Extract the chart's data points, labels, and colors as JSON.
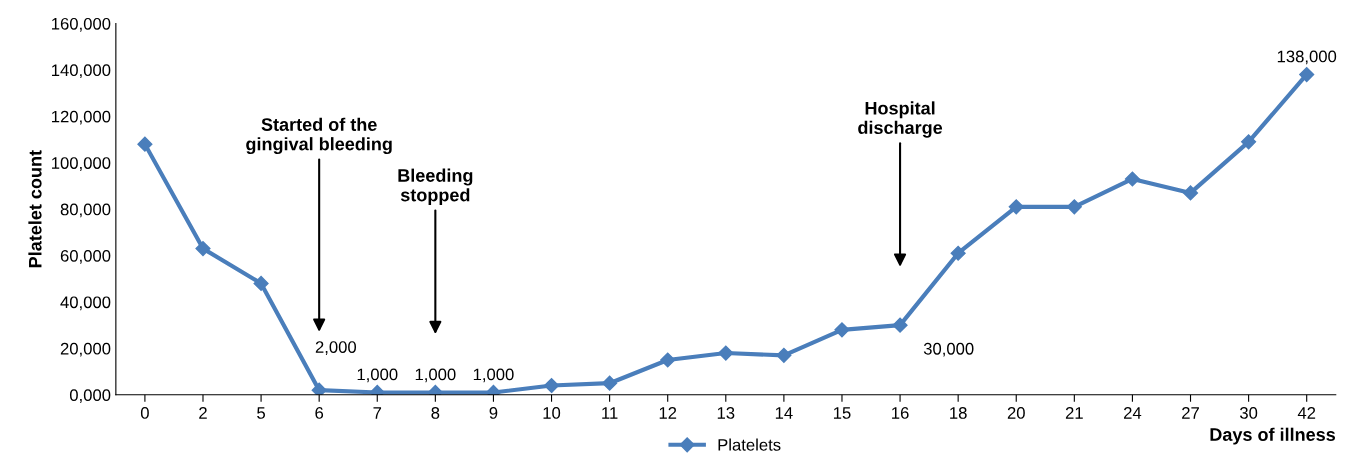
{
  "chart_data": {
    "type": "line",
    "xlabel": "Days of illness",
    "ylabel": "Platelet count",
    "categories": [
      "0",
      "2",
      "5",
      "6",
      "7",
      "8",
      "9",
      "10",
      "11",
      "12",
      "13",
      "14",
      "15",
      "16",
      "18",
      "20",
      "21",
      "24",
      "27",
      "30",
      "42"
    ],
    "series": [
      {
        "name": "Platelets",
        "color": "#4a7ebb",
        "values": [
          108000,
          63000,
          48000,
          2000,
          1000,
          1000,
          1000,
          4000,
          5000,
          15000,
          18000,
          17000,
          28000,
          30000,
          61000,
          81000,
          81000,
          93000,
          87000,
          109000,
          138000
        ],
        "value_labels": [
          null,
          null,
          null,
          "2,000",
          "1,000",
          "1,000",
          "1,000",
          null,
          null,
          null,
          null,
          null,
          null,
          "30,000",
          null,
          null,
          null,
          null,
          null,
          null,
          "138,000"
        ]
      }
    ],
    "ylim": [
      0,
      160000
    ],
    "yticks": [
      {
        "value": 0,
        "label": "0,000"
      },
      {
        "value": 20000,
        "label": "20,000"
      },
      {
        "value": 40000,
        "label": "40,000"
      },
      {
        "value": 60000,
        "label": "60,000"
      },
      {
        "value": 80000,
        "label": "80,000"
      },
      {
        "value": 100000,
        "label": "100,000"
      },
      {
        "value": 120000,
        "label": "120,000"
      },
      {
        "value": 140000,
        "label": "140,000"
      },
      {
        "value": 160000,
        "label": "160,000"
      }
    ],
    "annotations": [
      {
        "text": "Started of the\ngingival bleeding",
        "x": "6"
      },
      {
        "text": "Bleeding\nstopped",
        "x": "8"
      },
      {
        "text": "Hospital\ndischarge",
        "x": "16"
      }
    ],
    "marker": "diamond",
    "line_style": "solid",
    "legend": "bottom",
    "grid": false
  }
}
